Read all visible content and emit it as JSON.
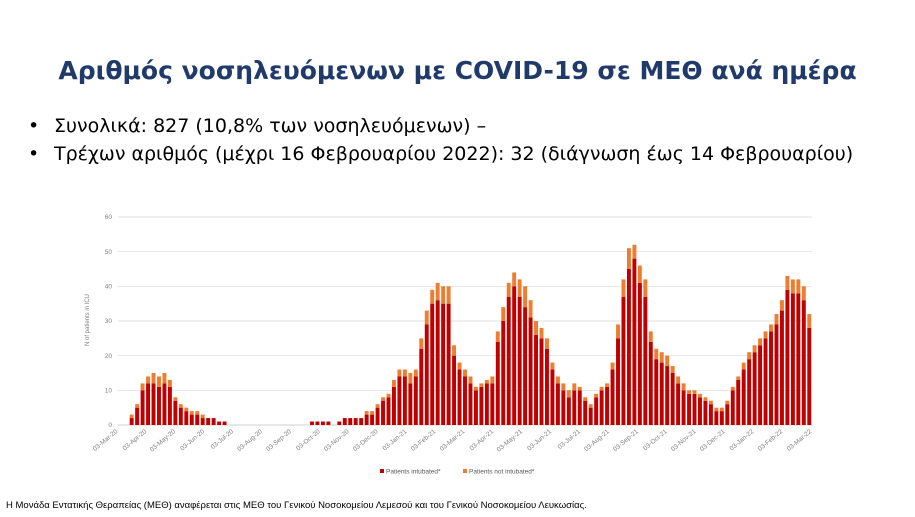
{
  "slide": {
    "title": "Αριθμός νοσηλευόμενων με COVID-19 σε ΜΕΘ ανά ημέρα",
    "bullets": [
      "Συνολικά: 827 (10,8% των νοσηλευόμενων) –",
      "Τρέχων αριθμός (μέχρι 16 Φεβρουαρίου 2022): 32 (διάγνωση έως 14 Φεβρουαρίου)"
    ],
    "bullet_glyph": "•",
    "footnote": "Η Μονάδα Εντατικής Θεραπείας (ΜΕΘ) αναφέρεται στις ΜΕΘ του Γενικού Νοσοκομείου Λεμεσού και του Γενικού Νοσοκομείου Λευκωσίας."
  },
  "chart_data": {
    "type": "bar",
    "stacked": true,
    "ylabel": "N of patients in ICU",
    "ylim": [
      0,
      60
    ],
    "yticks": [
      0,
      10,
      20,
      30,
      40,
      50,
      60
    ],
    "grid": true,
    "legend_position": "bottom",
    "colors": {
      "intubated": "#c00000",
      "not_intubated": "#ed7d31",
      "grid": "#d9d9d9",
      "axis": "#bfbfbf"
    },
    "x_tick_labels": [
      "03-Mar-20",
      "03-Apr-20",
      "03-May-20",
      "03-Jun-20",
      "03-Jul-20",
      "03-Aug-20",
      "03-Sep-20",
      "03-Oct-20",
      "03-Nov-20",
      "03-Dec-20",
      "03-Jan-21",
      "03-Feb-21",
      "03-Mar-21",
      "03-Apr-21",
      "03-May-21",
      "03-Jun-21",
      "03-Jul-21",
      "03-Aug-21",
      "03-Sep-21",
      "03-Oct-21",
      "03-Nov-21",
      "03-Dec-21",
      "03-Jan-22",
      "03-Feb-22",
      "03-Mar-22"
    ],
    "approx_weekly_start": "03-Mar-20",
    "series": [
      {
        "name": "Patients intubated*",
        "values": [
          0,
          0,
          2,
          5,
          10,
          12,
          12,
          11,
          12,
          11,
          7,
          5,
          4,
          3,
          3,
          2,
          2,
          2,
          1,
          1,
          0,
          0,
          0,
          0,
          0,
          0,
          0,
          0,
          0,
          0,
          0,
          0,
          0,
          0,
          0,
          1,
          1,
          1,
          1,
          0,
          1,
          2,
          2,
          2,
          2,
          3,
          3,
          5,
          7,
          8,
          11,
          14,
          14,
          12,
          14,
          22,
          29,
          35,
          36,
          35,
          35,
          20,
          16,
          14,
          12,
          10,
          11,
          12,
          12,
          24,
          30,
          37,
          40,
          37,
          34,
          31,
          26,
          25,
          22,
          16,
          12,
          10,
          8,
          10,
          10,
          7,
          5,
          8,
          10,
          11,
          16,
          25,
          37,
          45,
          48,
          41,
          37,
          24,
          19,
          18,
          17,
          15,
          12,
          10,
          9,
          9,
          8,
          7,
          6,
          4,
          4,
          6,
          10,
          13,
          16,
          19,
          21,
          23,
          25,
          27,
          29,
          33,
          39,
          38,
          38,
          36,
          28
        ]
      },
      {
        "name": "Patients not intubated*",
        "values": [
          0,
          0,
          1,
          1,
          2,
          2,
          3,
          3,
          3,
          2,
          1,
          1,
          1,
          1,
          1,
          1,
          0,
          0,
          0,
          0,
          0,
          0,
          0,
          0,
          0,
          0,
          0,
          0,
          0,
          0,
          0,
          0,
          0,
          0,
          0,
          0,
          0,
          0,
          0,
          0,
          0,
          0,
          0,
          0,
          0,
          1,
          1,
          1,
          1,
          1,
          2,
          2,
          2,
          3,
          2,
          3,
          4,
          4,
          5,
          5,
          5,
          3,
          2,
          2,
          2,
          1,
          1,
          1,
          2,
          3,
          4,
          4,
          4,
          5,
          6,
          5,
          4,
          3,
          3,
          2,
          2,
          2,
          2,
          2,
          1,
          1,
          1,
          1,
          1,
          1,
          2,
          4,
          5,
          6,
          4,
          5,
          5,
          3,
          3,
          3,
          3,
          2,
          2,
          2,
          1,
          1,
          1,
          1,
          1,
          1,
          1,
          1,
          1,
          1,
          2,
          2,
          2,
          2,
          2,
          2,
          3,
          3,
          4,
          4,
          4,
          4,
          4
        ]
      }
    ]
  }
}
